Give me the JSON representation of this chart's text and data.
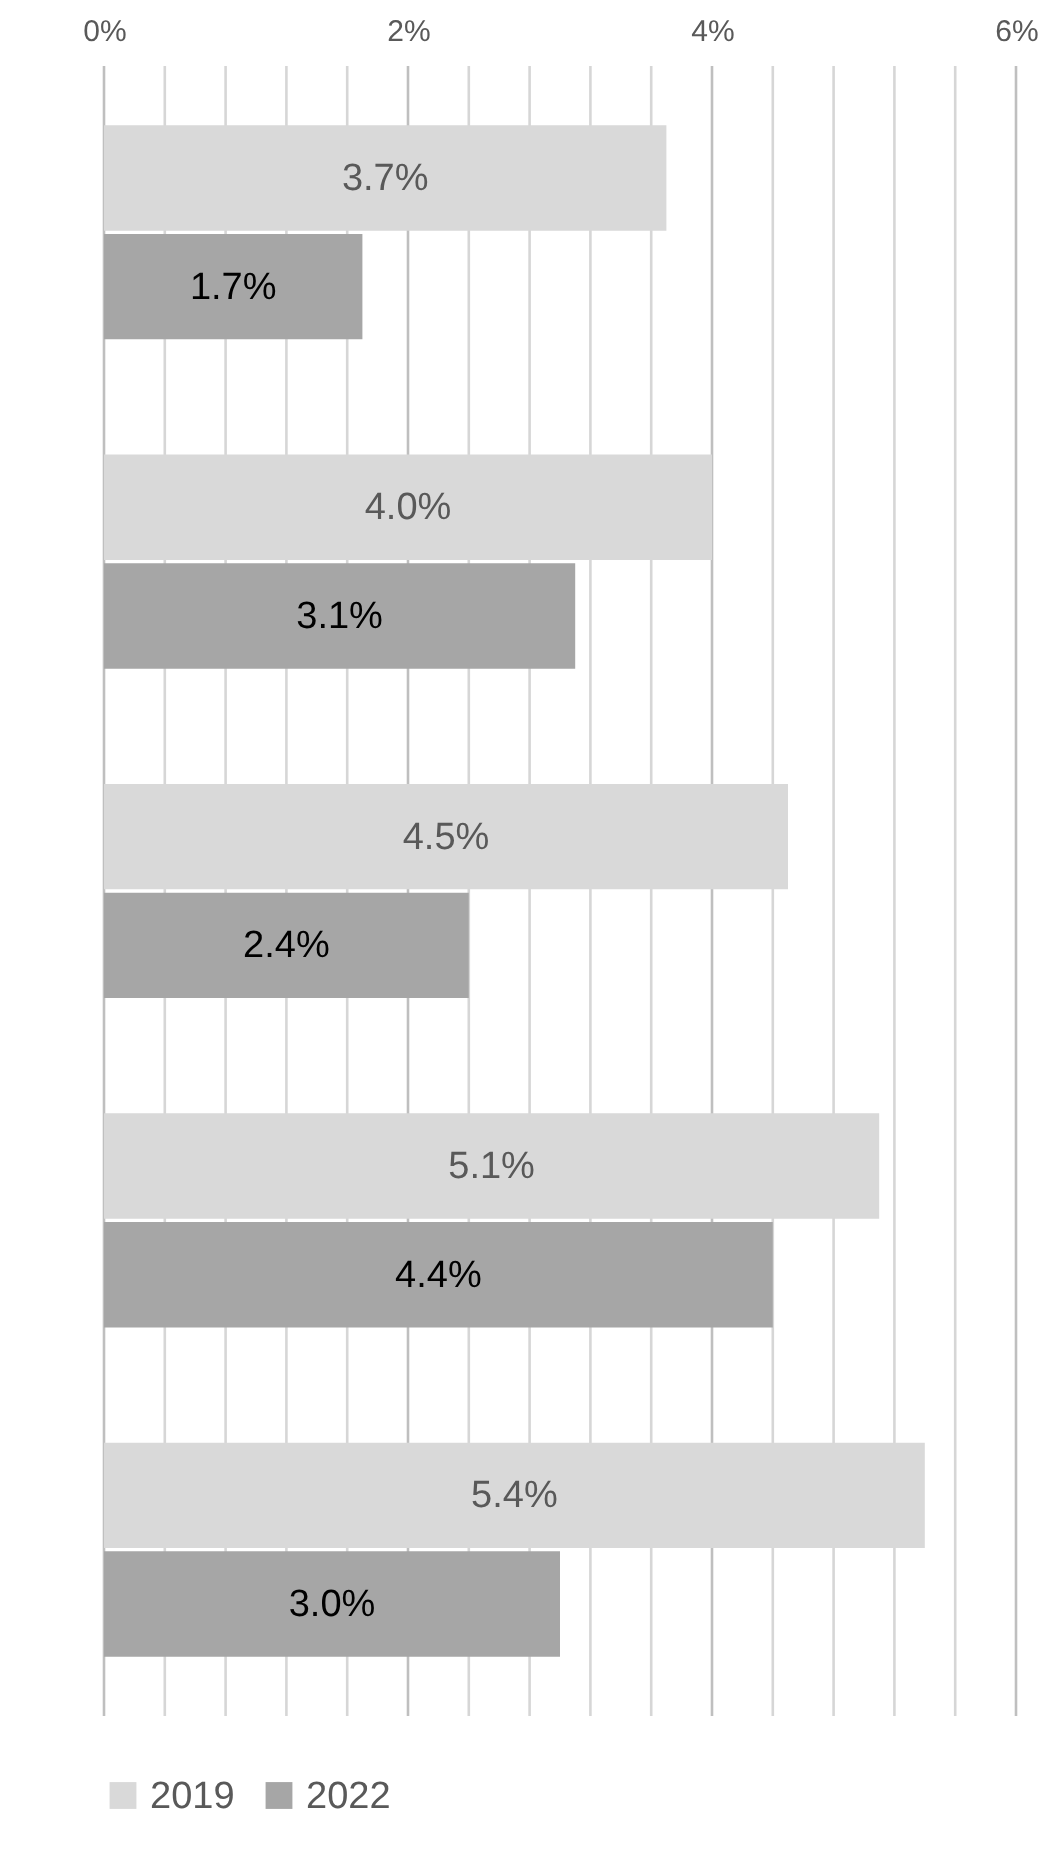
{
  "chart_data": {
    "type": "bar",
    "orientation": "horizontal",
    "categories": [
      null,
      null,
      null,
      null,
      null
    ],
    "series": [
      {
        "name": "2019",
        "color": "#d9d9d9",
        "values": [
          3.7,
          4.0,
          4.5,
          5.1,
          5.4
        ],
        "value_labels": [
          "3.7%",
          "4.0%",
          "4.5%",
          "5.1%",
          "5.4%"
        ]
      },
      {
        "name": "2022",
        "color": "#a6a6a6",
        "values": [
          1.7,
          3.1,
          2.4,
          4.4,
          3.0
        ],
        "value_labels": [
          "1.7%",
          "3.1%",
          "2.4%",
          "4.4%",
          "3.0%"
        ]
      }
    ],
    "xlim": [
      0,
      6
    ],
    "xticks": [
      {
        "value": 0,
        "label": "0%"
      },
      {
        "value": 0.4,
        "label": null
      },
      {
        "value": 0.8,
        "label": null
      },
      {
        "value": 1.2,
        "label": null
      },
      {
        "value": 1.6,
        "label": null
      },
      {
        "value": 2,
        "label": "2%"
      },
      {
        "value": 2.4,
        "label": null
      },
      {
        "value": 2.8,
        "label": null
      },
      {
        "value": 3.2,
        "label": null
      },
      {
        "value": 3.6,
        "label": null
      },
      {
        "value": 4,
        "label": "4%"
      },
      {
        "value": 4.4,
        "label": null
      },
      {
        "value": 4.8,
        "label": null
      },
      {
        "value": 5.2,
        "label": null
      },
      {
        "value": 5.6,
        "label": null
      },
      {
        "value": 6,
        "label": "6%"
      }
    ],
    "grid": true,
    "legend": "bottom"
  }
}
